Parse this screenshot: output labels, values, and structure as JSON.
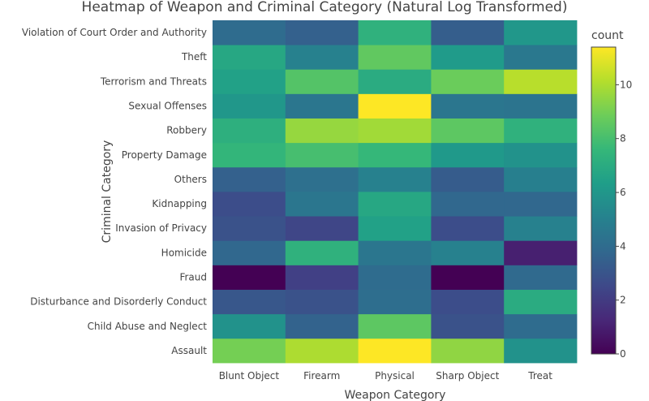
{
  "chart_data": {
    "type": "heatmap",
    "title": "Heatmap of Weapon and Criminal Category (Natural Log Transformed)",
    "xlabel": "Weapon Category",
    "ylabel": "Criminal Category",
    "x_categories": [
      "Blunt Object",
      "Firearm",
      "Physical",
      "Sharp Object",
      "Treat"
    ],
    "y_categories": [
      "Assault",
      "Child Abuse and Neglect",
      "Disturbance and Disorderly Conduct",
      "Fraud",
      "Homicide",
      "Invasion of Privacy",
      "Kidnapping",
      "Others",
      "Property Damage",
      "Robbery",
      "Sexual Offenses",
      "Terrorism and Threats",
      "Theft",
      "Violation of Court Order and Authority"
    ],
    "z": [
      [
        9.0,
        10.0,
        11.4,
        9.5,
        5.8
      ],
      [
        5.8,
        3.6,
        8.5,
        2.9,
        4.0
      ],
      [
        3.1,
        2.9,
        4.1,
        2.7,
        7.0
      ],
      [
        0.0,
        2.2,
        4.0,
        0.0,
        3.9
      ],
      [
        3.8,
        7.3,
        4.5,
        5.0,
        1.0
      ],
      [
        2.9,
        2.4,
        6.5,
        2.7,
        5.0
      ],
      [
        2.7,
        4.5,
        6.8,
        3.8,
        3.8
      ],
      [
        3.5,
        4.2,
        5.0,
        3.3,
        4.9
      ],
      [
        7.5,
        8.0,
        7.6,
        6.1,
        5.8
      ],
      [
        7.2,
        9.6,
        9.8,
        8.5,
        7.3
      ],
      [
        6.0,
        4.5,
        11.4,
        4.5,
        4.4
      ],
      [
        6.5,
        8.3,
        7.0,
        8.8,
        10.2
      ],
      [
        6.8,
        5.0,
        8.6,
        6.2,
        4.6
      ],
      [
        4.0,
        3.5,
        7.3,
        3.4,
        6.0
      ]
    ],
    "colorscale": "viridis",
    "colorbar_title": "count",
    "zrange": [
      0,
      11.4
    ],
    "colorbar_ticks": [
      "0",
      "2",
      "4",
      "6",
      "8",
      "10"
    ],
    "grid": false,
    "legend": "right (colorbar)"
  }
}
